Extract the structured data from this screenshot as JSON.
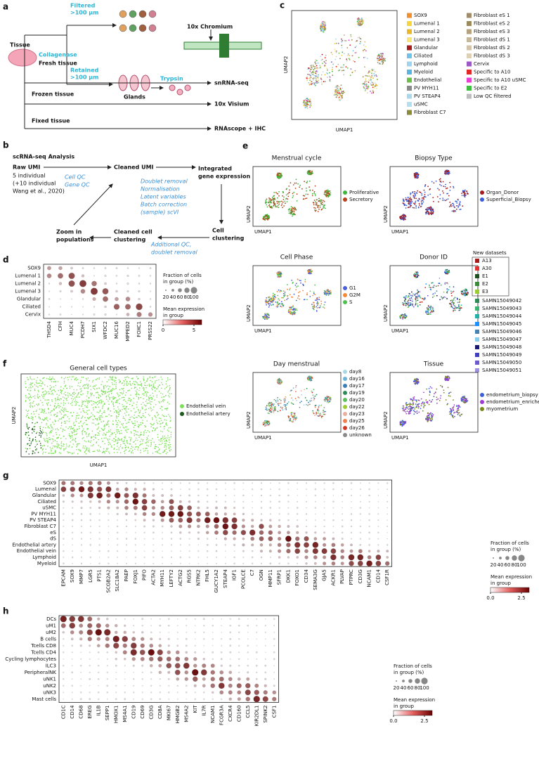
{
  "a": {
    "label": "a",
    "filtered": [
      "Filtered",
      ">100 µm"
    ],
    "chromium": "10x Chromium",
    "tissue": "Tissue",
    "collagenase": "Collagenase",
    "fresh": "Fresh tissue",
    "retained": [
      "Retained",
      ">100 µm"
    ],
    "glands": "Glands",
    "trypsin": "Trypsin",
    "snrna": "snRNA-seq",
    "frozen": "Frozen tissue",
    "visium": "10x Visium",
    "fixed": "Fixed tissue",
    "rnascope": "RNAscope + IHC"
  },
  "b": {
    "label": "b",
    "title": "scRNA-seq Analysis",
    "raw": "Raw UMI",
    "raw_notes": [
      "5 individual",
      "(+10 individual",
      "Wang et al., 2020)"
    ],
    "qc": [
      "Cell QC",
      "Gene QC"
    ],
    "cleaned": "Cleaned UMI",
    "steps": [
      "Doublet removal",
      "Normalisation",
      "Latent variables",
      "Batch correction",
      "(sample) scVI"
    ],
    "integrated": [
      "Integrated",
      "gene expression"
    ],
    "cell_clustering": [
      "Cell",
      "clustering"
    ],
    "additional": [
      "Additional QC,",
      "doublet removal"
    ],
    "cleaned_clustering": [
      "Cleaned cell",
      "clustering"
    ],
    "zoom": [
      "Zoom in",
      "populations"
    ]
  },
  "c": {
    "label": "c",
    "xlabel": "UMAP1",
    "ylabel": "UMAP2",
    "legend": [
      {
        "name": "SOX9",
        "color": "#f28e2b"
      },
      {
        "name": "Lumenal 1",
        "color": "#f5d63d"
      },
      {
        "name": "Lumenal 2",
        "color": "#e8b82a"
      },
      {
        "name": "Lumenal 3",
        "color": "#f7e47a"
      },
      {
        "name": "Glandular",
        "color": "#a61c1c"
      },
      {
        "name": "Ciliated",
        "color": "#6fc3e8"
      },
      {
        "name": "Lymphoid",
        "color": "#9fd4ef"
      },
      {
        "name": "Myeloid",
        "color": "#5ab4e0"
      },
      {
        "name": "Endothelial",
        "color": "#6cc04a"
      },
      {
        "name": "PV MYH11",
        "color": "#8a8a8a"
      },
      {
        "name": "PV STEAP4",
        "color": "#a9d8ec"
      },
      {
        "name": "uSMC",
        "color": "#b5dff0"
      },
      {
        "name": "Fibroblast C7",
        "color": "#8b8b3a"
      },
      {
        "name": "Fibroblast eS 1",
        "color": "#a08c6a"
      },
      {
        "name": "Fibroblast eS 2",
        "color": "#9a8a5c"
      },
      {
        "name": "Fibroblast eS 3",
        "color": "#b3a27d"
      },
      {
        "name": "Fibroblast dS 1",
        "color": "#c8b89a"
      },
      {
        "name": "Fibroblast dS 2",
        "color": "#d2c4a8"
      },
      {
        "name": "Fibroblast dS 3",
        "color": "#ddd0b6"
      },
      {
        "name": "Cervix",
        "color": "#9b59c6"
      },
      {
        "name": "Specific to A10",
        "color": "#e32626"
      },
      {
        "name": "Specific to A10 uSMC",
        "color": "#e83fd3"
      },
      {
        "name": "Specific to E2",
        "color": "#3fbf3f"
      },
      {
        "name": "Low QC filtered",
        "color": "#bdbdbd"
      }
    ]
  },
  "d": {
    "label": "d",
    "rows": [
      "SOX9",
      "Lumenal 1",
      "Lumenal 2",
      "Lumenal 3",
      "Glandular",
      "Ciliated",
      "Cervix"
    ],
    "genes": [
      "THSD4",
      "CFH",
      "MUC4",
      "PCDH7",
      "SIX1",
      "WFDC2",
      "MUC16",
      "MPPED2",
      "FOXC1",
      "PRSS22"
    ],
    "size_title": [
      "Fraction of cells",
      "in group (%)"
    ],
    "size_ticks": [
      20,
      40,
      60,
      80,
      100
    ],
    "color_title": [
      "Mean expression",
      "in group"
    ],
    "color_ticks": [
      0,
      5
    ]
  },
  "e": {
    "label": "e",
    "xlabel": "UMAP1",
    "ylabel": "UMAP2",
    "panels": [
      {
        "title": "Menstrual cycle",
        "legend": [
          {
            "name": "Proliferative",
            "color": "#3cb83c"
          },
          {
            "name": "Secretory",
            "color": "#b5451b"
          }
        ]
      },
      {
        "title": "Biopsy Type",
        "legend": [
          {
            "name": "Organ_Donor",
            "color": "#a61c1c"
          },
          {
            "name": "Superficial_Biopsy",
            "color": "#3a5fd9"
          }
        ]
      },
      {
        "title": "Cell Phase",
        "legend": [
          {
            "name": "G1",
            "color": "#4a5fd9"
          },
          {
            "name": "G2M",
            "color": "#f08a3a"
          },
          {
            "name": "S",
            "color": "#4cc44c"
          }
        ]
      },
      {
        "title": "Donor ID",
        "legend_header": "New datasets",
        "legend": [
          {
            "name": "A13",
            "color": "#a61c1c"
          },
          {
            "name": "A30",
            "color": "#e33030"
          },
          {
            "name": "E1",
            "color": "#1f4f1f"
          },
          {
            "name": "E2",
            "color": "#3a8a3a"
          },
          {
            "name": "E3",
            "color": "#9acd32"
          },
          {
            "name": "SAMN15049042",
            "color": "#2e8b57"
          },
          {
            "name": "SAMN15049043",
            "color": "#3cb371"
          },
          {
            "name": "SAMN15049044",
            "color": "#20b2aa"
          },
          {
            "name": "SAMN15049045",
            "color": "#1e90ff"
          },
          {
            "name": "SAMN15049046",
            "color": "#4682b4"
          },
          {
            "name": "SAMN15049047",
            "color": "#87ceeb"
          },
          {
            "name": "SAMN15049048",
            "color": "#191970"
          },
          {
            "name": "SAMN15049049",
            "color": "#3f3fbf"
          },
          {
            "name": "SAMN15049050",
            "color": "#6a5acd"
          },
          {
            "name": "SAMN15049051",
            "color": "#9f8fdf"
          }
        ]
      },
      {
        "title": "Day menstrual",
        "legend": [
          {
            "name": "day8",
            "color": "#a8d8e8"
          },
          {
            "name": "day16",
            "color": "#6cb4d8"
          },
          {
            "name": "day17",
            "color": "#3a7fb8"
          },
          {
            "name": "day19",
            "color": "#2e8b57"
          },
          {
            "name": "day20",
            "color": "#5cc05c"
          },
          {
            "name": "day22",
            "color": "#9acd32"
          },
          {
            "name": "day23",
            "color": "#e8b0a0"
          },
          {
            "name": "day25",
            "color": "#f08050"
          },
          {
            "name": "day26",
            "color": "#d03a2a"
          },
          {
            "name": "unknown",
            "color": "#8a8a8a"
          }
        ]
      },
      {
        "title": "Tissue",
        "legend": [
          {
            "name": "endometrium_biopsy",
            "color": "#3a5fd9"
          },
          {
            "name": "endometrium_enriched",
            "color": "#a03ad0"
          },
          {
            "name": "myometrium",
            "color": "#7a8a1a"
          }
        ]
      }
    ]
  },
  "f": {
    "label": "f",
    "title": "General cell types",
    "xlabel": "UMAP1",
    "ylabel": "UMAP2",
    "legend": [
      {
        "name": "Endothelial vein",
        "color": "#7ee05a"
      },
      {
        "name": "Endothelial artery",
        "color": "#1f5a1f"
      }
    ]
  },
  "g": {
    "label": "g",
    "rows": [
      "SOX9",
      "Lumenal",
      "Glandular",
      "Ciliated",
      "uSMC",
      "PV MYH11",
      "PV STEAP4",
      "Fibroblast C7",
      "eS",
      "dS",
      "Endothelial artery",
      "Endothelial vein",
      "Lymphoid",
      "Myeloid"
    ],
    "genes": [
      "EPCAM",
      "SOX9",
      "MMP7",
      "LGR5",
      "PTS1",
      "SCGB2A2",
      "SLC18A2",
      "PAEP",
      "FOXJ1",
      "PIFO",
      "ACTA2",
      "MYH11",
      "LEFTY2",
      "ACTG2",
      "RGS5",
      "NTRK2",
      "FHL5",
      "GUCY1A2",
      "STEAP4",
      "IGF1",
      "PCOLCE",
      "C7",
      "OGN",
      "MMP11",
      "SFRP1",
      "DKK1",
      "FOXO1",
      "CD34",
      "SEMA3G",
      "GJA5",
      "ACKR1",
      "PLVAP",
      "PTPRC",
      "CD3G",
      "NCAM1",
      "CD14",
      "CSF1R"
    ],
    "size_title": [
      "Fraction of cells",
      "in group (%)"
    ],
    "size_ticks": [
      20,
      40,
      60,
      80,
      100
    ],
    "color_title": [
      "Mean expression",
      "in group"
    ],
    "color_ticks": [
      {
        "value": 0,
        "label": "0.0"
      },
      2.5
    ]
  },
  "h": {
    "label": "h",
    "rows": [
      "DCs",
      "uM1",
      "uM2",
      "B cells",
      "Tcells CD8",
      "Tcells CD4",
      "Cycling lymphocytes",
      "ILC3",
      "PeripheralNK",
      "uNK1",
      "uNK2",
      "uNK3",
      "Mast cells"
    ],
    "genes": [
      "CD1C",
      "CD14",
      "CD68",
      "EREG",
      "IL1B",
      "SEPP1",
      "HMOX1",
      "MS4A1",
      "CD19",
      "CD69",
      "CD3G",
      "CD8A",
      "MKI67",
      "HMGB2",
      "MS4A2",
      "KIT",
      "IL7R",
      "NCAM1",
      "FCGR3A",
      "CXCR4",
      "CD160",
      "CCL5",
      "KIR2DL1",
      "SPINK2",
      "CSF1"
    ],
    "size_title": [
      "Fraction of cells",
      "in group (%)"
    ],
    "size_ticks": [
      20,
      40,
      60,
      80,
      100
    ],
    "color_title": [
      "Mean expression",
      "in group"
    ],
    "color_ticks": [
      {
        "value": 0,
        "label": "0.0"
      },
      2.5
    ]
  }
}
